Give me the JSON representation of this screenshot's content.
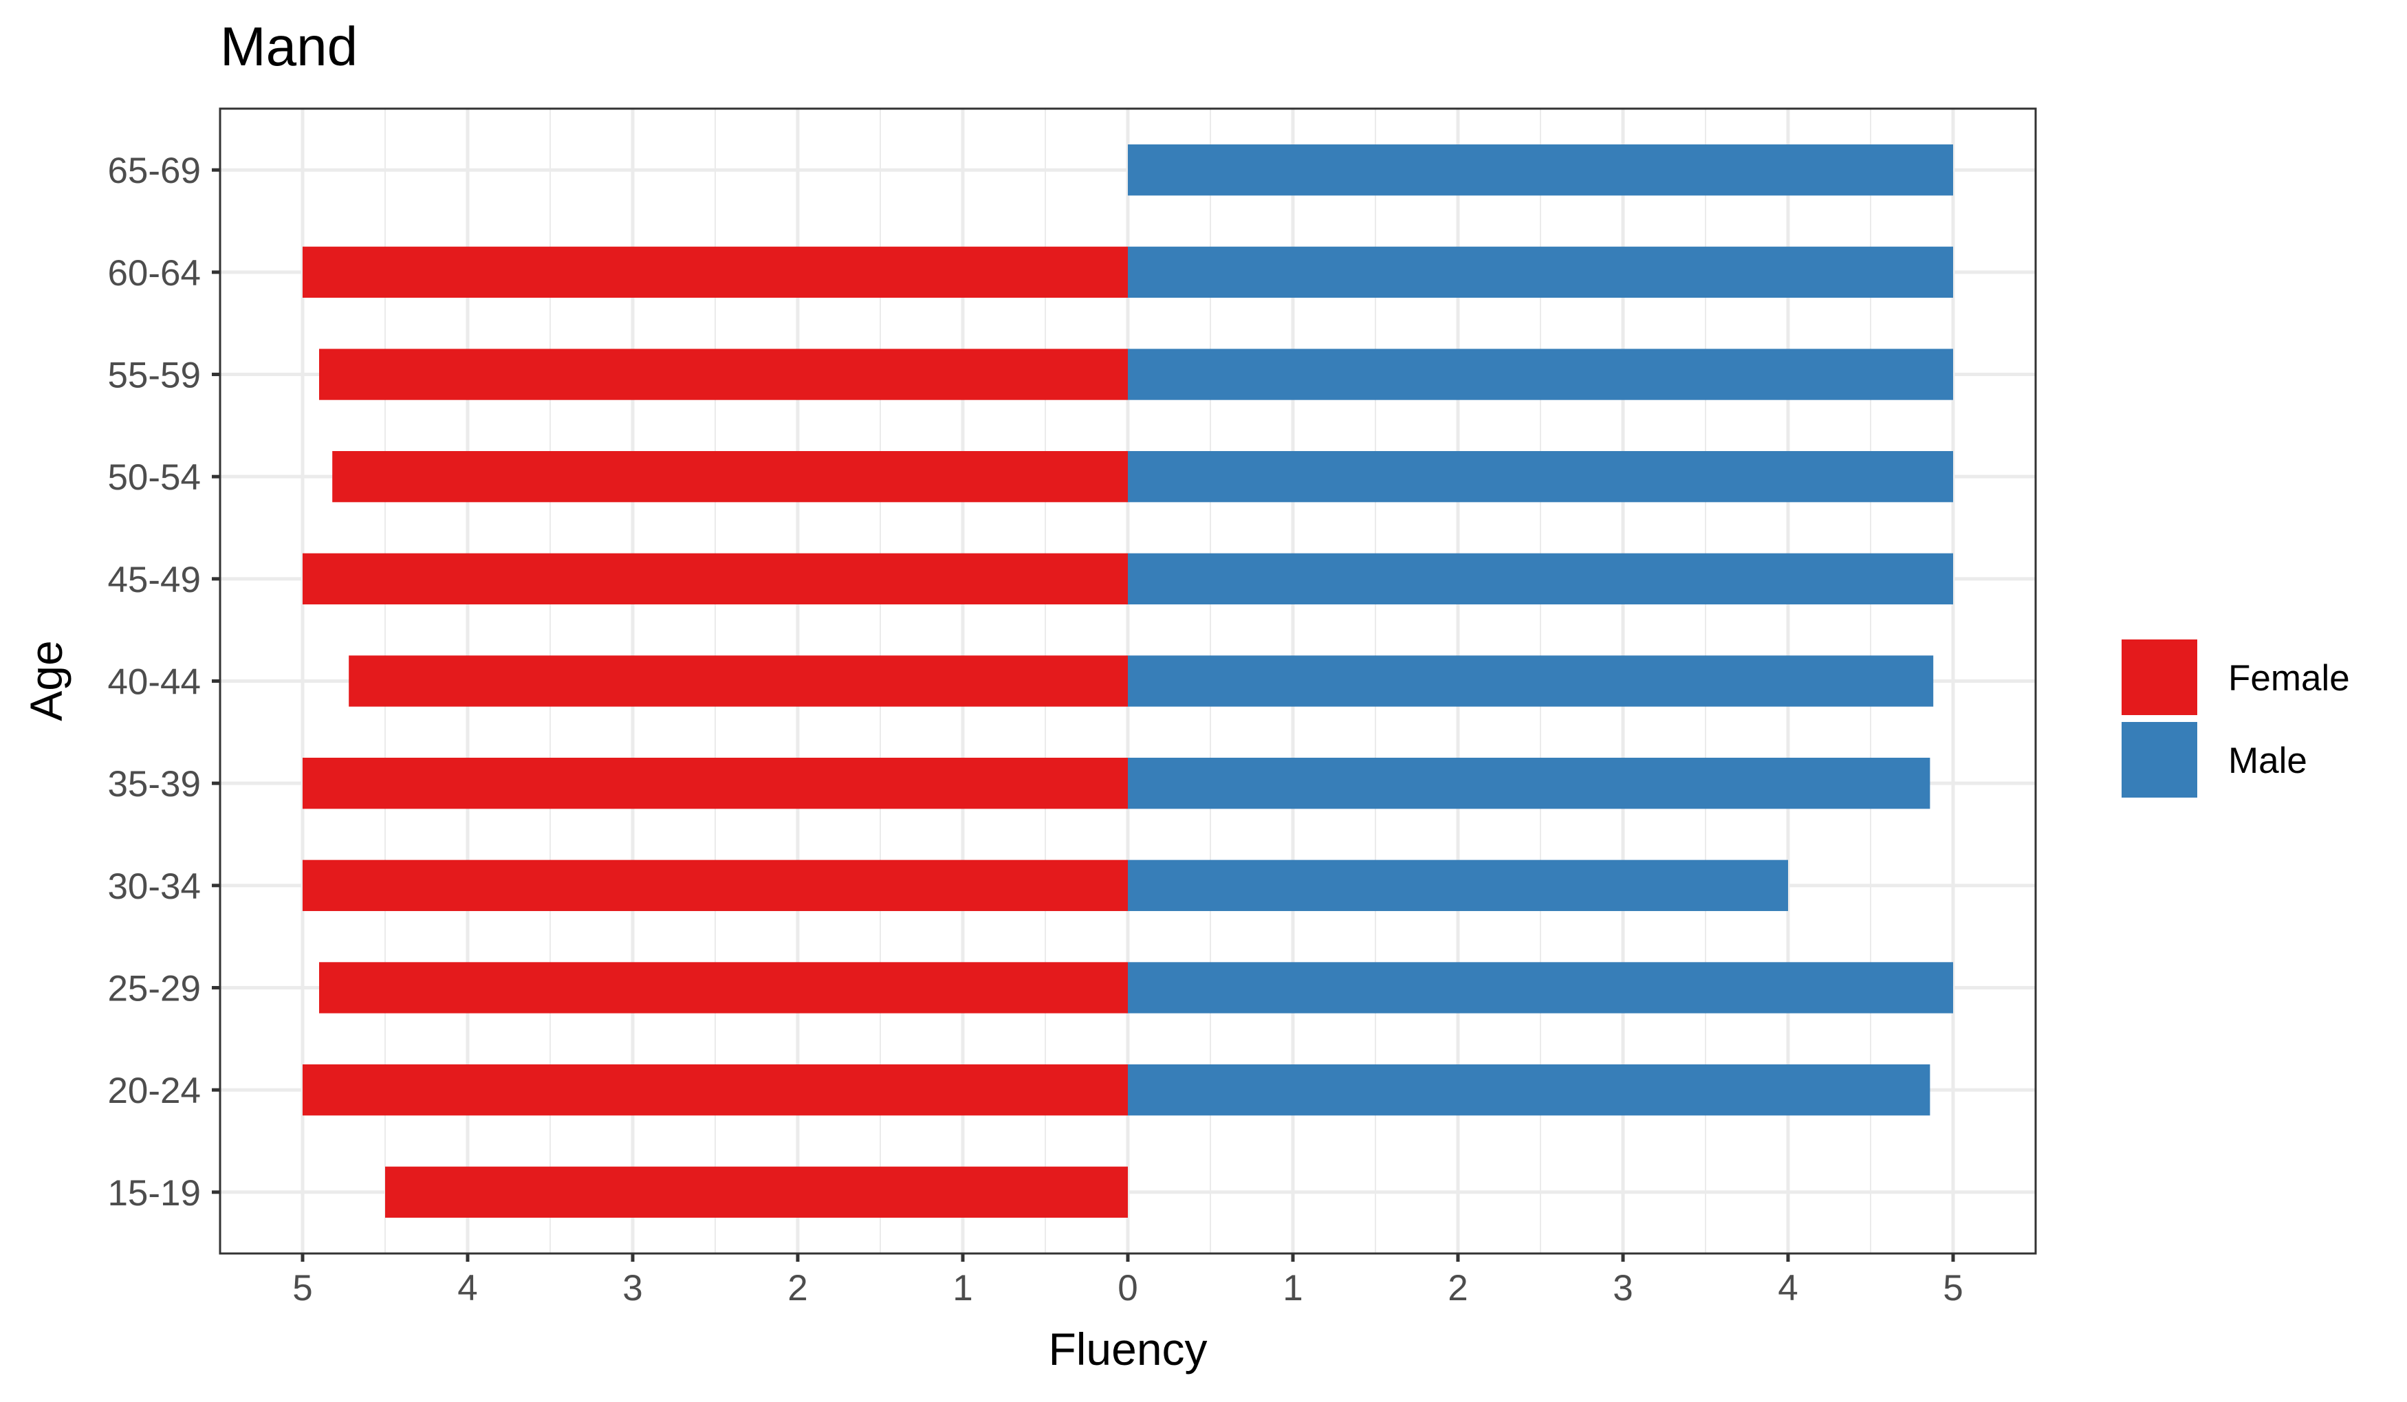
{
  "chart_data": {
    "type": "bar",
    "orientation": "horizontal",
    "layout": "diverging",
    "title": "Mand",
    "xlabel": "Fluency",
    "ylabel": "Age",
    "xlim": [
      -5.5,
      5.5
    ],
    "x_ticks": [
      -5,
      -4,
      -3,
      -2,
      -1,
      0,
      1,
      2,
      3,
      4,
      5
    ],
    "x_tick_labels": [
      "5",
      "4",
      "3",
      "2",
      "1",
      "0",
      "1",
      "2",
      "3",
      "4",
      "5"
    ],
    "categories": [
      "15-19",
      "20-24",
      "25-29",
      "30-34",
      "35-39",
      "40-44",
      "45-49",
      "50-54",
      "55-59",
      "60-64",
      "65-69"
    ],
    "series": [
      {
        "name": "Female",
        "color": "#E41A1C",
        "direction": "left",
        "values": [
          4.5,
          5.0,
          4.9,
          5.0,
          5.0,
          4.72,
          5.0,
          4.82,
          4.9,
          5.0,
          null
        ]
      },
      {
        "name": "Male",
        "color": "#377EB8",
        "direction": "right",
        "values": [
          null,
          4.86,
          5.0,
          4.0,
          4.86,
          4.88,
          5.0,
          5.0,
          5.0,
          5.0,
          5.0
        ]
      }
    ],
    "grid": true,
    "legend_position": "right"
  }
}
